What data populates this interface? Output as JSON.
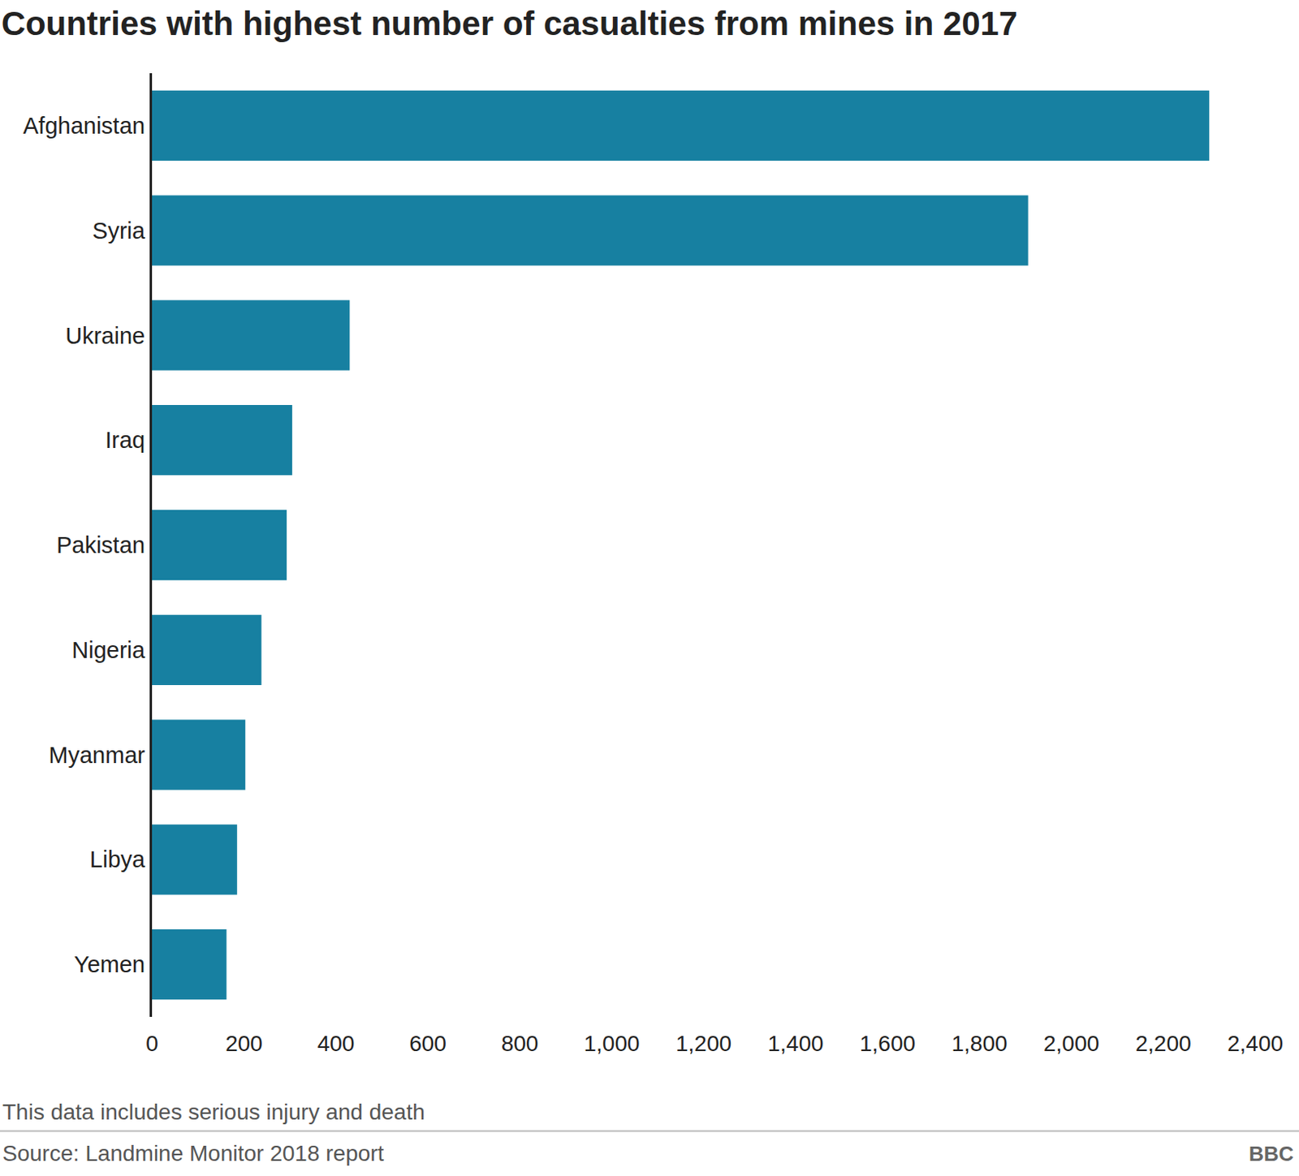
{
  "chart_data": {
    "type": "bar",
    "orientation": "horizontal",
    "title": "Countries with highest number of casualties from mines in 2017",
    "categories": [
      "Afghanistan",
      "Syria",
      "Ukraine",
      "Iraq",
      "Pakistan",
      "Nigeria",
      "Myanmar",
      "Libya",
      "Yemen"
    ],
    "values": [
      2300,
      1906,
      430,
      305,
      293,
      238,
      203,
      185,
      162
    ],
    "color": "#1780a1",
    "xlim": [
      0,
      2400
    ],
    "xticks": [
      0,
      200,
      400,
      600,
      800,
      {
        "value": 1000,
        "label": "1,000"
      },
      {
        "value": 1200,
        "label": "1,200"
      },
      {
        "value": 1400,
        "label": "1,400"
      },
      {
        "value": 1600,
        "label": "1,600"
      },
      {
        "value": 1800,
        "label": "1,800"
      },
      {
        "value": 2000,
        "label": "2,000"
      },
      {
        "value": 2200,
        "label": "2,200"
      },
      {
        "value": 2400,
        "label": "2,400"
      }
    ],
    "grid": false,
    "annotations": [
      "This data includes serious injury and death",
      "Source: Landmine Monitor 2018 report",
      "BBC"
    ]
  }
}
